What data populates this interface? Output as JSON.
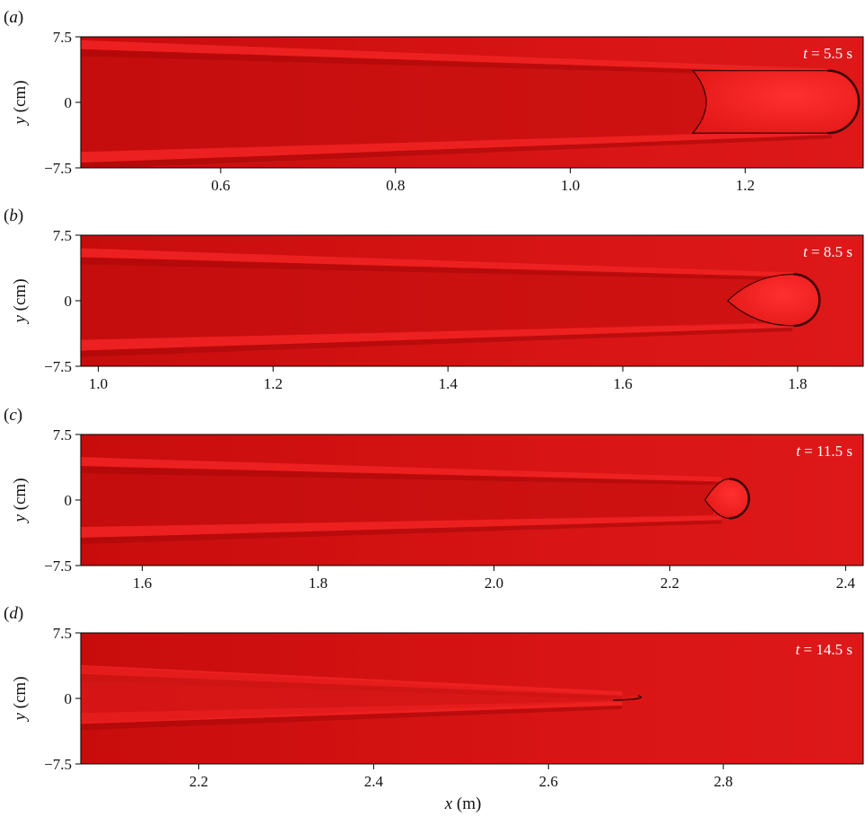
{
  "chart_data": [
    {
      "type": "heatmap",
      "panel_label": "a",
      "time_label": "t = 5.5 s",
      "time_value": 5.5,
      "xlim": [
        0.44,
        1.335
      ],
      "ylim": [
        -7.5,
        7.5
      ],
      "xticks": [
        0.6,
        0.8,
        1.0,
        1.2
      ],
      "xtick_labels": [
        "0.6",
        "0.8",
        "1.0",
        "1.2"
      ],
      "yticks": [
        -7.5,
        0,
        7.5
      ],
      "ytick_labels": [
        "−7.5",
        "0",
        "7.5"
      ],
      "ylabel": "y (cm)",
      "xlabel": "",
      "front_x": 1.33,
      "head_start_x": 1.14,
      "streak_start_y": [
        6.6,
        -6.4
      ]
    },
    {
      "type": "heatmap",
      "panel_label": "b",
      "time_label": "t = 8.5 s",
      "time_value": 8.5,
      "xlim": [
        0.98,
        1.875
      ],
      "ylim": [
        -7.5,
        7.5
      ],
      "xticks": [
        1.0,
        1.2,
        1.4,
        1.6,
        1.8
      ],
      "xtick_labels": [
        "1.0",
        "1.2",
        "1.4",
        "1.6",
        "1.8"
      ],
      "yticks": [
        -7.5,
        0,
        7.5
      ],
      "ytick_labels": [
        "−7.5",
        "0",
        "7.5"
      ],
      "ylabel": "y (cm)",
      "xlabel": "",
      "front_x": 1.825,
      "head_start_x": 1.72,
      "streak_start_y": [
        5.5,
        -5.2
      ]
    },
    {
      "type": "heatmap",
      "panel_label": "c",
      "time_label": "t = 11.5 s",
      "time_value": 11.5,
      "xlim": [
        1.53,
        2.42
      ],
      "ylim": [
        -7.5,
        7.5
      ],
      "xticks": [
        1.6,
        1.8,
        2.0,
        2.2,
        2.4
      ],
      "xtick_labels": [
        "1.6",
        "1.8",
        "2.0",
        "2.2",
        "2.4"
      ],
      "yticks": [
        -7.5,
        0,
        7.5
      ],
      "ytick_labels": [
        "−7.5",
        "0",
        "7.5"
      ],
      "ylabel": "y (cm)",
      "xlabel": "",
      "front_x": 2.29,
      "head_start_x": 2.24,
      "streak_start_y": [
        4.4,
        -3.8
      ]
    },
    {
      "type": "heatmap",
      "panel_label": "d",
      "time_label": "t = 14.5 s",
      "time_value": 14.5,
      "xlim": [
        2.065,
        2.96
      ],
      "ylim": [
        -7.5,
        7.5
      ],
      "xticks": [
        2.2,
        2.4,
        2.6,
        2.8
      ],
      "xtick_labels": [
        "2.2",
        "2.4",
        "2.6",
        "2.8"
      ],
      "yticks": [
        -7.5,
        0,
        7.5
      ],
      "ytick_labels": [
        "−7.5",
        "0",
        "7.5"
      ],
      "ylabel": "y (cm)",
      "xlabel": "x (m)",
      "front_x": 2.715,
      "head_start_x": null,
      "streak_start_y": [
        3.3,
        -2.4
      ]
    }
  ],
  "colors": {
    "background_red": "#d81414",
    "dark_red": "#a80808",
    "bright_red": "#f02222",
    "front_outline": "#3a0000",
    "time_text": "#ffffff"
  }
}
